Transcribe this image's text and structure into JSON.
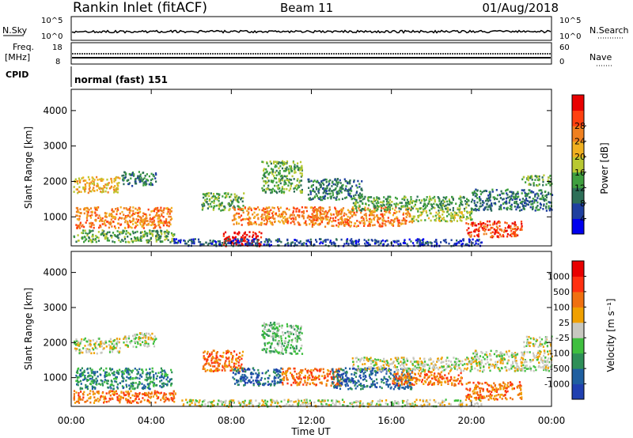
{
  "header": {
    "station": "Rankin Inlet (fitACF)",
    "beam": "Beam 11",
    "date": "01/Aug/2018"
  },
  "summary": {
    "nsky_label": "N.Sky",
    "nsearch_label": "N.Search",
    "freq_label_line1": "Freq.",
    "freq_label_line2": "[MHz]",
    "nave_label": "Nave",
    "cpid_label": "CPID",
    "cpid_value": "normal (fast) 151",
    "noise_ticks_left": [
      "10^5",
      "10^0"
    ],
    "noise_ticks_right": [
      "10^5",
      "10^0"
    ],
    "freq_ticks": [
      "18",
      "8"
    ],
    "nave_ticks": [
      "60",
      "0"
    ]
  },
  "chart_data": [
    {
      "type": "heatmap",
      "name": "power",
      "ylabel": "Slant Range [km]",
      "xlabel": "Time UT",
      "xticks": [
        "00:00",
        "04:00",
        "08:00",
        "12:00",
        "16:00",
        "20:00",
        "00:00"
      ],
      "xlim_hours": [
        0,
        24
      ],
      "yticks": [
        1000,
        2000,
        3000,
        4000
      ],
      "ylim": [
        180,
        4600
      ],
      "colorbar": {
        "label": "Power [dB]",
        "ticks": [
          "4",
          "8",
          "12",
          "16",
          "20",
          "24",
          "28"
        ],
        "colors": [
          "#0000ee",
          "#1f3f9f",
          "#2e6f58",
          "#3f9f3f",
          "#b8c832",
          "#f0b020",
          "#f08020",
          "#ff4010",
          "#e80000"
        ]
      },
      "regions": [
        {
          "t0": 0.1,
          "t1": 2.4,
          "r0": 1700,
          "r1": 2150,
          "level": 5
        },
        {
          "t0": 0.2,
          "t1": 5.0,
          "r0": 700,
          "r1": 1300,
          "level": 6
        },
        {
          "t0": 0.1,
          "t1": 5.2,
          "r0": 300,
          "r1": 650,
          "level": 3
        },
        {
          "t0": 2.5,
          "t1": 4.2,
          "r0": 1900,
          "r1": 2300,
          "level": 2
        },
        {
          "t0": 7.5,
          "t1": 9.5,
          "r0": 200,
          "r1": 600,
          "level": 8
        },
        {
          "t0": 6.5,
          "t1": 8.6,
          "r0": 1200,
          "r1": 1700,
          "level": 3
        },
        {
          "t0": 8.0,
          "t1": 12.5,
          "r0": 800,
          "r1": 1300,
          "level": 6
        },
        {
          "t0": 9.5,
          "t1": 11.5,
          "r0": 1700,
          "r1": 2600,
          "level": 3
        },
        {
          "t0": 11.8,
          "t1": 14.5,
          "r0": 1500,
          "r1": 2100,
          "level": 2
        },
        {
          "t0": 12.0,
          "t1": 17.0,
          "r0": 750,
          "r1": 1300,
          "level": 6
        },
        {
          "t0": 14.0,
          "t1": 20.0,
          "r0": 1200,
          "r1": 1600,
          "level": 3
        },
        {
          "t0": 17.0,
          "t1": 20.0,
          "r0": 900,
          "r1": 1200,
          "level": 4
        },
        {
          "t0": 19.7,
          "t1": 22.5,
          "r0": 450,
          "r1": 900,
          "level": 7
        },
        {
          "t0": 20.0,
          "t1": 24.0,
          "r0": 1200,
          "r1": 1800,
          "level": 2
        },
        {
          "t0": 22.5,
          "t1": 24.0,
          "r0": 1900,
          "r1": 2200,
          "level": 3
        },
        {
          "t0": 5.0,
          "t1": 20.5,
          "r0": 200,
          "r1": 400,
          "level": 1
        }
      ]
    },
    {
      "type": "heatmap",
      "name": "velocity",
      "ylabel": "Slant Range [km]",
      "xlabel": "Time UT",
      "xticks": [
        "00:00",
        "04:00",
        "08:00",
        "12:00",
        "16:00",
        "20:00",
        "00:00"
      ],
      "xlim_hours": [
        0,
        24
      ],
      "yticks": [
        1000,
        2000,
        3000,
        4000
      ],
      "ylim": [
        180,
        4600
      ],
      "colorbar": {
        "label": "Velocity [m s⁻¹]",
        "ticks": [
          "1000",
          "500",
          "100",
          "25",
          "-25",
          "-100",
          "-500",
          "-1000"
        ],
        "colors": [
          "#2040b0",
          "#1f5fa0",
          "#2e8f58",
          "#3fbf3f",
          "#c8c8c0",
          "#f0a000",
          "#f07010",
          "#ff3010",
          "#e80000"
        ]
      },
      "regions": [
        {
          "t0": 0.1,
          "t1": 2.4,
          "r0": 1700,
          "r1": 2150,
          "level": 4
        },
        {
          "t0": 0.2,
          "t1": 5.0,
          "r0": 700,
          "r1": 1300,
          "level": 2
        },
        {
          "t0": 0.1,
          "t1": 5.2,
          "r0": 300,
          "r1": 650,
          "level": 6
        },
        {
          "t0": 2.5,
          "t1": 4.2,
          "r0": 1900,
          "r1": 2300,
          "level": 4
        },
        {
          "t0": 6.5,
          "t1": 8.6,
          "r0": 1200,
          "r1": 1800,
          "level": 6
        },
        {
          "t0": 8.0,
          "t1": 10.5,
          "r0": 800,
          "r1": 1300,
          "level": 1
        },
        {
          "t0": 9.5,
          "t1": 11.5,
          "r0": 1700,
          "r1": 2600,
          "level": 3
        },
        {
          "t0": 10.5,
          "t1": 13.5,
          "r0": 800,
          "r1": 1300,
          "level": 6
        },
        {
          "t0": 13.0,
          "t1": 17.0,
          "r0": 700,
          "r1": 1300,
          "level": 1
        },
        {
          "t0": 14.0,
          "t1": 20.0,
          "r0": 1200,
          "r1": 1600,
          "level": 4
        },
        {
          "t0": 16.0,
          "t1": 19.5,
          "r0": 800,
          "r1": 1200,
          "level": 6
        },
        {
          "t0": 19.7,
          "t1": 22.5,
          "r0": 400,
          "r1": 900,
          "level": 6
        },
        {
          "t0": 20.0,
          "t1": 24.0,
          "r0": 1200,
          "r1": 1800,
          "level": 4
        },
        {
          "t0": 22.5,
          "t1": 24.0,
          "r0": 1900,
          "r1": 2200,
          "level": 4
        },
        {
          "t0": 5.5,
          "t1": 20.5,
          "r0": 200,
          "r1": 400,
          "level": 4
        }
      ]
    }
  ]
}
